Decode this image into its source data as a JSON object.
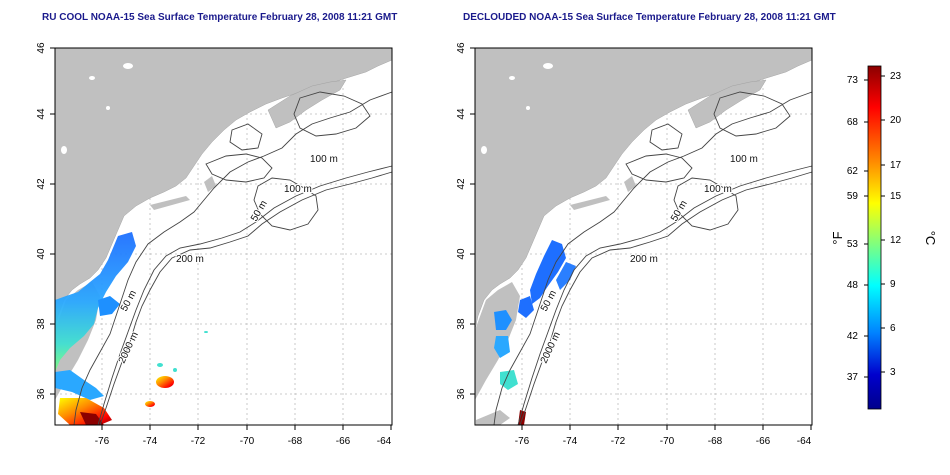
{
  "panels": [
    {
      "title": "RU COOL NOAA-15 Sea Surface Temperature February 28, 2008 11:21 GMT",
      "contour_labels": [
        "100 m",
        "100 m",
        "50 m",
        "200 m",
        "50 m",
        "2000 m"
      ]
    },
    {
      "title": "DECLOUDED NOAA-15 Sea Surface Temperature February 28, 2008 11:21 GMT",
      "contour_labels": [
        "100 m",
        "100 m",
        "50 m",
        "200 m",
        "50 m",
        "2000 m"
      ]
    }
  ],
  "map_axes": {
    "lon_ticks": [
      "-76",
      "-74",
      "-72",
      "-70",
      "-68",
      "-66",
      "-64"
    ],
    "lat_ticks": [
      "46",
      "44",
      "42",
      "40",
      "38",
      "36"
    ]
  },
  "colorbar": {
    "f_ticks": [
      "73",
      "68",
      "62",
      "59",
      "53",
      "48",
      "42",
      "37"
    ],
    "c_ticks": [
      "23",
      "20",
      "17",
      "15",
      "12",
      "9",
      "6",
      "3"
    ],
    "f_label": "°F",
    "c_label": "°C",
    "colors": [
      "#8b0000",
      "#ff0000",
      "#ff8c00",
      "#ffff00",
      "#7fff7f",
      "#00ffff",
      "#0080ff",
      "#0000cd",
      "#00008b"
    ]
  },
  "colors": {
    "land": "#c0c0c0",
    "contour": "#444444",
    "grid": "#bbbbbb"
  }
}
